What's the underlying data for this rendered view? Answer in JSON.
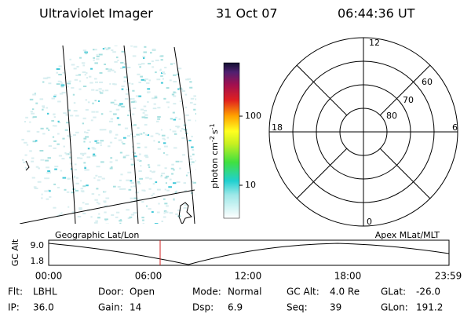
{
  "header": {
    "title": "Ultraviolet Imager",
    "date": "31 Oct 07",
    "time": "06:44:36 UT"
  },
  "colorbar": {
    "unit": "photon cm",
    "exp1": "-2",
    "unit2": "s",
    "exp2": "-1",
    "ticks": [
      "100",
      "10"
    ]
  },
  "polar": {
    "mlt": [
      "12",
      "18",
      "6",
      "0"
    ],
    "lat": [
      "60",
      "70",
      "80"
    ]
  },
  "timeline": {
    "left_title": "Geographic Lat/Lon",
    "right_title": "Apex  MLat/MLT",
    "y_label": "GC Alt",
    "y_ticks": [
      "9.0",
      "1.8"
    ],
    "x_ticks": [
      "00:00",
      "06:00",
      "12:00",
      "18:00",
      "23:59"
    ]
  },
  "footer": {
    "rows": [
      [
        [
          "Flt:",
          "LBHL"
        ],
        [
          "Door:",
          "Open"
        ],
        [
          "Mode:",
          "Normal"
        ],
        [
          "GC Alt:",
          "4.0 Re"
        ],
        [
          "GLat:",
          "-26.0"
        ]
      ],
      [
        [
          "IP:",
          "36.0"
        ],
        [
          "Gain:",
          "14"
        ],
        [
          "Dsp:",
          "6.9"
        ],
        [
          "Seq:",
          "39"
        ],
        [
          "GLon:",
          "191.2"
        ]
      ]
    ]
  }
}
